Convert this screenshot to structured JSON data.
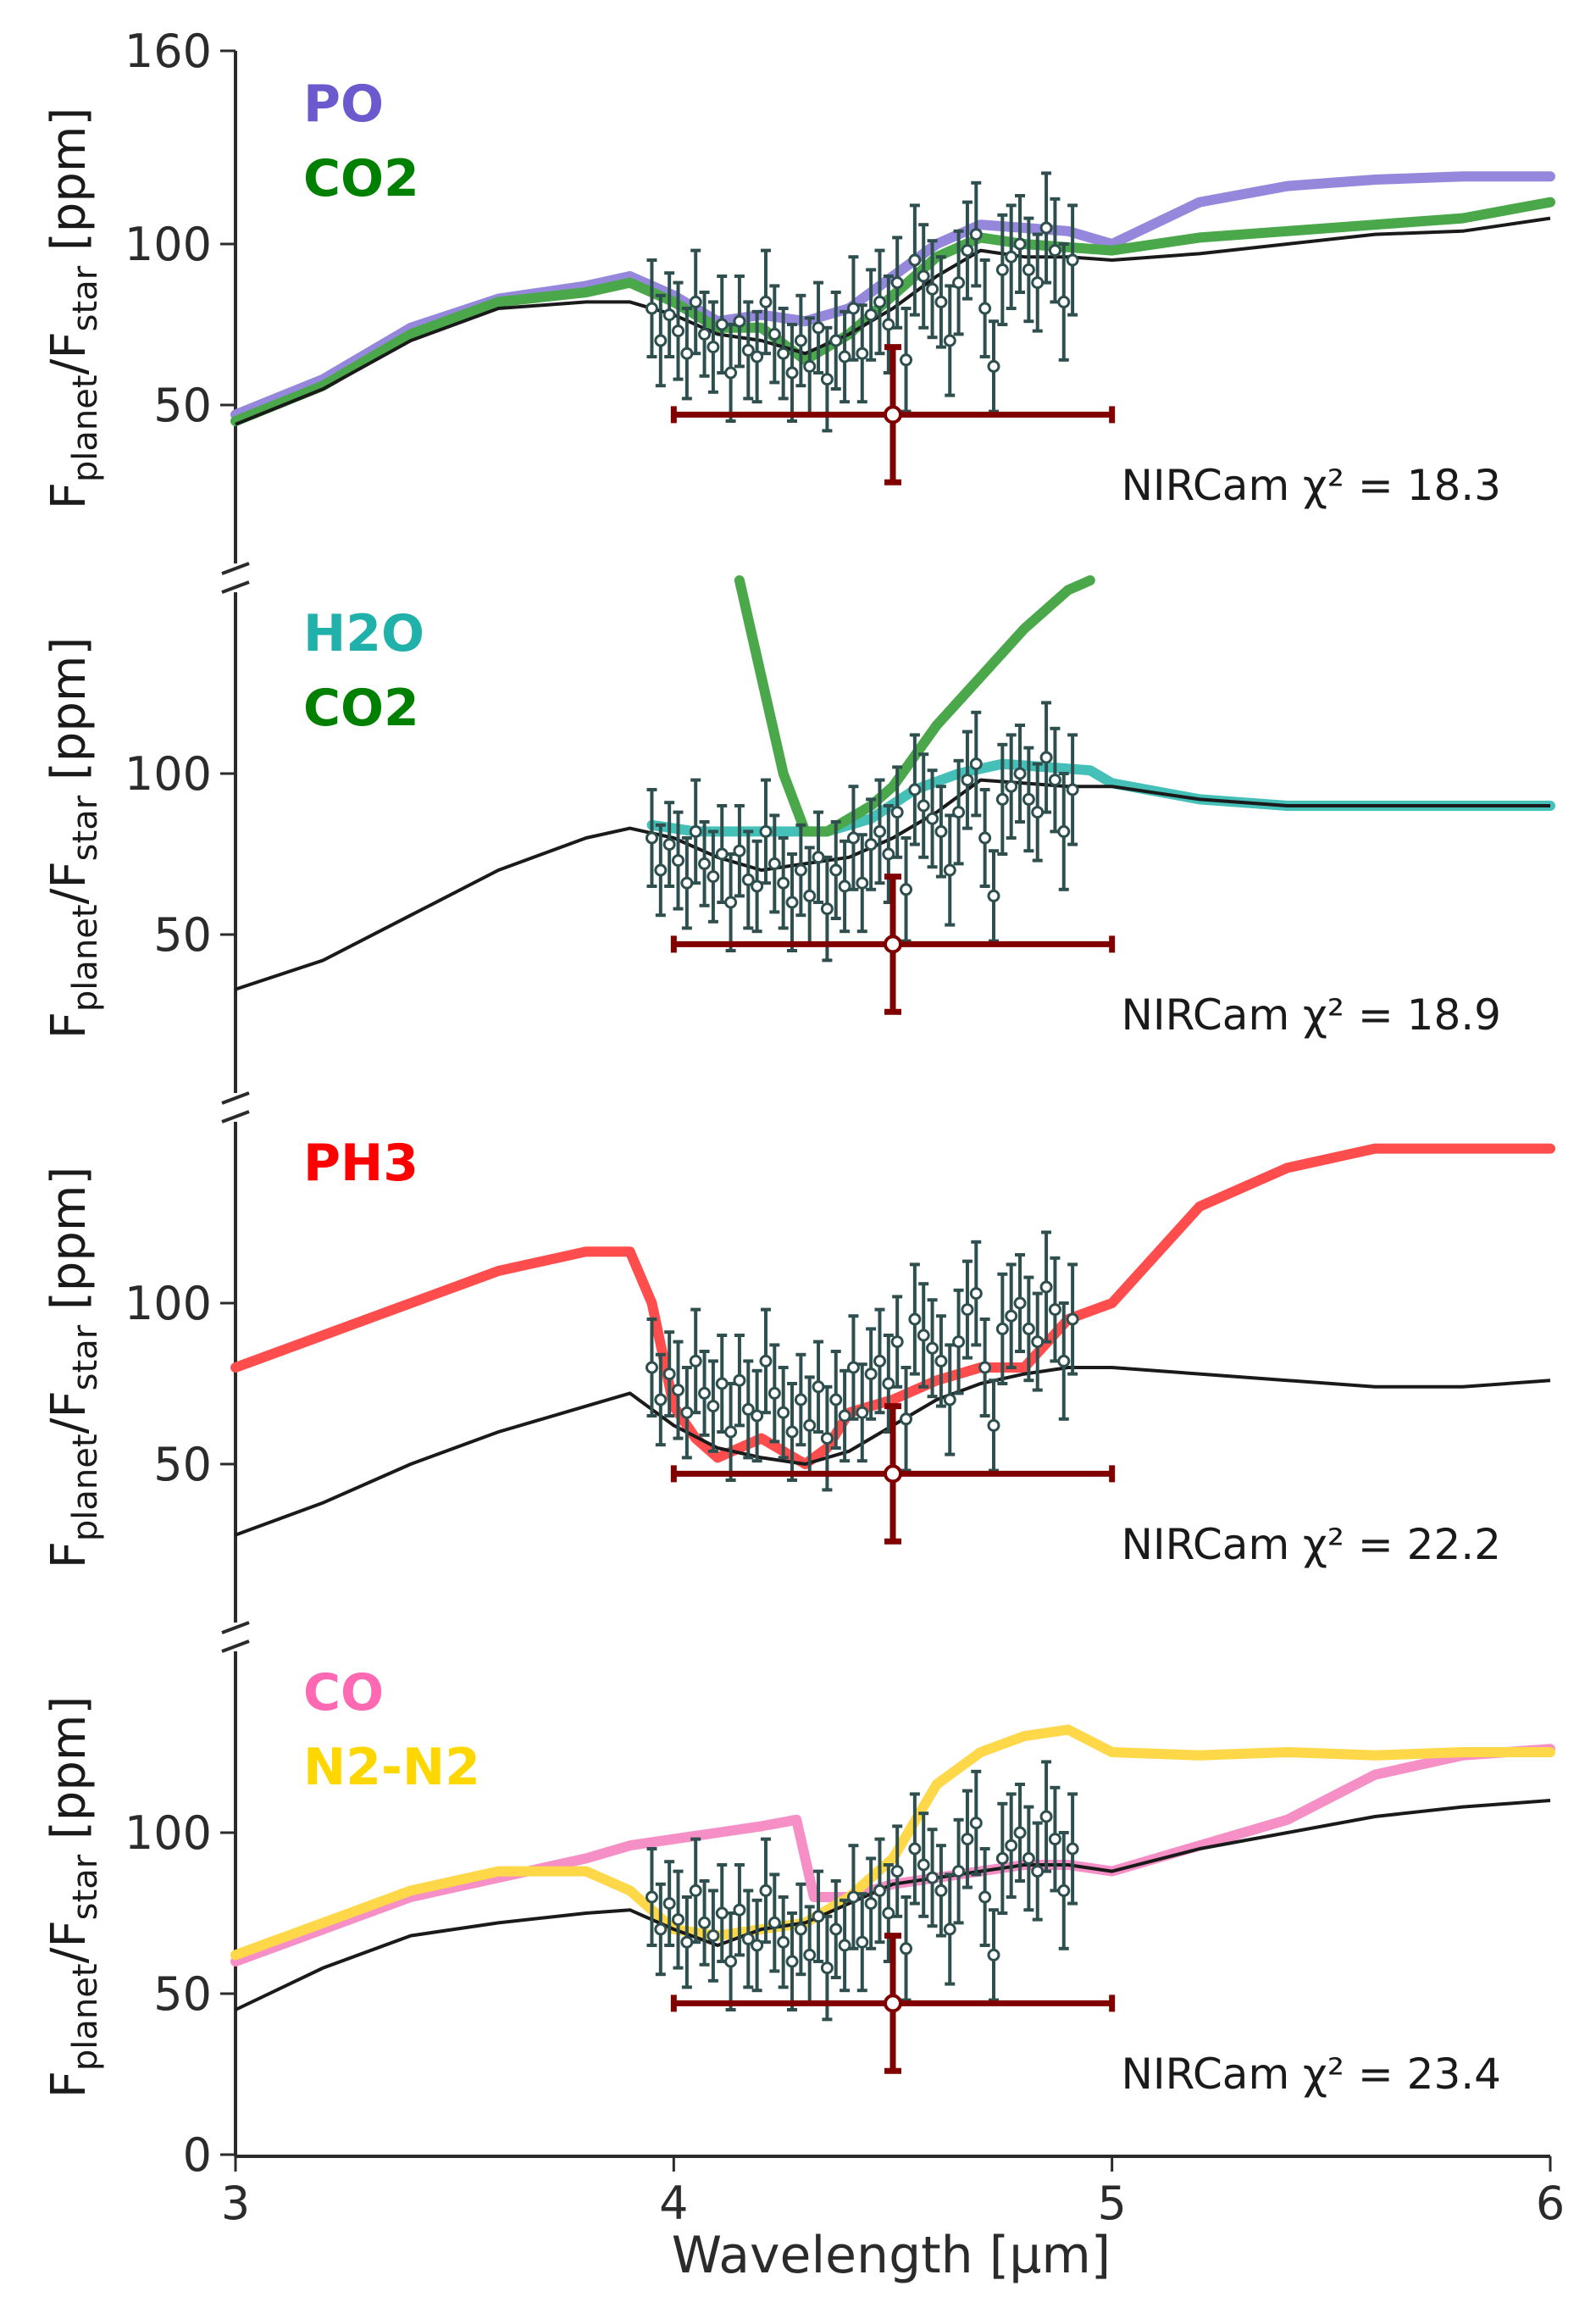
{
  "chart_data": {
    "type": "line",
    "xlabel": "Wavelength [μm]",
    "xlim": [
      3,
      6
    ],
    "x_ticks": [
      "3",
      "4",
      "5",
      "6"
    ],
    "ylabel": {
      "main": "F",
      "sub1": "planet",
      "slash": "/F",
      "sub2": "star",
      "unit": " [ppm]"
    },
    "axis_color": "#2b2b2b",
    "data_color": "#2f4f4f",
    "integrated_color": "#800000",
    "baseline_color": "#1a1a1a",
    "observations": {
      "x": [
        3.95,
        3.97,
        3.99,
        4.01,
        4.03,
        4.05,
        4.07,
        4.09,
        4.11,
        4.13,
        4.15,
        4.17,
        4.19,
        4.21,
        4.23,
        4.25,
        4.27,
        4.29,
        4.31,
        4.33,
        4.35,
        4.37,
        4.39,
        4.41,
        4.43,
        4.45,
        4.47,
        4.49,
        4.51,
        4.53,
        4.55,
        4.57,
        4.59,
        4.61,
        4.63,
        4.65,
        4.67,
        4.69,
        4.71,
        4.73,
        4.75,
        4.77,
        4.79,
        4.81,
        4.83,
        4.85,
        4.87,
        4.89,
        4.91
      ],
      "y": [
        80,
        70,
        78,
        73,
        66,
        82,
        72,
        68,
        75,
        60,
        76,
        67,
        65,
        82,
        72,
        66,
        60,
        70,
        62,
        74,
        58,
        70,
        65,
        80,
        66,
        78,
        82,
        75,
        88,
        64,
        95,
        90,
        86,
        82,
        70,
        88,
        98,
        103,
        80,
        62,
        92,
        96,
        100,
        92,
        88,
        105,
        98,
        82,
        95
      ],
      "err": [
        15,
        14,
        13,
        15,
        14,
        16,
        13,
        14,
        15,
        15,
        14,
        15,
        14,
        16,
        15,
        14,
        15,
        14,
        15,
        14,
        16,
        15,
        14,
        16,
        15,
        14,
        16,
        15,
        14,
        16,
        17,
        16,
        15,
        14,
        17,
        16,
        15,
        16,
        15,
        14,
        17,
        16,
        15,
        16,
        15,
        17,
        16,
        18,
        17
      ]
    },
    "integrated_point": {
      "x": 4.5,
      "y": 47,
      "x_range": [
        4.0,
        5.0
      ],
      "y_err": 21
    },
    "panels": [
      {
        "ylim": [
          0,
          160
        ],
        "y_ticks": [
          "160",
          "100",
          "50"
        ],
        "y_tick_values": [
          160,
          100,
          50
        ],
        "chi2_label": "NIRCam χ² = 18.3",
        "legend": [
          {
            "label": "PO",
            "color": "#6a5acd"
          },
          {
            "label": "CO2",
            "color": "#008000"
          }
        ],
        "baseline": {
          "x": [
            3.0,
            3.2,
            3.4,
            3.6,
            3.8,
            3.9,
            4.0,
            4.1,
            4.2,
            4.3,
            4.4,
            4.5,
            4.6,
            4.7,
            4.8,
            4.9,
            5.0,
            5.2,
            5.4,
            5.6,
            5.8,
            6.0
          ],
          "y": [
            44,
            55,
            70,
            80,
            82,
            82,
            78,
            72,
            70,
            66,
            72,
            80,
            90,
            98,
            96,
            96,
            95,
            97,
            100,
            103,
            104,
            108
          ]
        },
        "series": [
          {
            "name": "PO",
            "color": "#9587dc",
            "x": [
              3.0,
              3.2,
              3.4,
              3.6,
              3.8,
              3.9,
              4.0,
              4.1,
              4.2,
              4.3,
              4.4,
              4.5,
              4.6,
              4.7,
              4.8,
              4.9,
              5.0,
              5.2,
              5.4,
              5.6,
              5.8,
              6.0
            ],
            "y": [
              47,
              58,
              74,
              83,
              87,
              90,
              84,
              76,
              78,
              76,
              80,
              90,
              100,
              106,
              105,
              104,
              100,
              113,
              118,
              120,
              121,
              121
            ]
          },
          {
            "name": "CO2",
            "color": "#4aa84a",
            "x": [
              3.0,
              3.2,
              3.4,
              3.6,
              3.8,
              3.9,
              4.0,
              4.1,
              4.2,
              4.3,
              4.4,
              4.5,
              4.6,
              4.7,
              4.8,
              4.9,
              5.0,
              5.2,
              5.4,
              5.6,
              5.8,
              6.0
            ],
            "y": [
              45,
              56,
              72,
              82,
              85,
              88,
              82,
              74,
              74,
              64,
              72,
              84,
              96,
              102,
              100,
              99,
              98,
              102,
              104,
              106,
              108,
              113
            ]
          }
        ]
      },
      {
        "ylim": [
          0,
          160
        ],
        "y_ticks": [
          "100",
          "50"
        ],
        "y_tick_values": [
          100,
          50
        ],
        "chi2_label": "NIRCam χ² = 18.9",
        "legend": [
          {
            "label": "H2O",
            "color": "#20b2aa"
          },
          {
            "label": "CO2",
            "color": "#008000"
          }
        ],
        "baseline": {
          "x": [
            3.0,
            3.2,
            3.4,
            3.6,
            3.8,
            3.9,
            4.0,
            4.1,
            4.2,
            4.3,
            4.4,
            4.5,
            4.6,
            4.7,
            4.8,
            4.9,
            5.0,
            5.2,
            5.4,
            5.6,
            5.8,
            6.0
          ],
          "y": [
            33,
            42,
            56,
            70,
            80,
            83,
            80,
            74,
            70,
            72,
            74,
            80,
            88,
            98,
            97,
            96,
            96,
            92,
            90,
            90,
            90,
            90
          ]
        },
        "series": [
          {
            "name": "H2O",
            "color": "#45c0b8",
            "x": [
              3.95,
              4.05,
              4.15,
              4.25,
              4.35,
              4.45,
              4.55,
              4.65,
              4.75,
              4.85,
              4.95,
              5.0,
              5.2,
              5.4,
              5.6,
              5.8,
              6.0
            ],
            "y": [
              84,
              82,
              82,
              82,
              82,
              86,
              95,
              100,
              103,
              102,
              101,
              97,
              92,
              90,
              90,
              90,
              90
            ]
          },
          {
            "name": "CO2",
            "color": "#4aa84a",
            "x": [
              4.15,
              4.2,
              4.25,
              4.3,
              4.35,
              4.4,
              4.45,
              4.5,
              4.6,
              4.7,
              4.8,
              4.9,
              4.95
            ],
            "y": [
              160,
              130,
              100,
              82,
              82,
              86,
              90,
              96,
              115,
              130,
              145,
              157,
              160
            ]
          }
        ]
      },
      {
        "ylim": [
          0,
          160
        ],
        "y_ticks": [
          "100",
          "50"
        ],
        "y_tick_values": [
          100,
          50
        ],
        "chi2_label": "NIRCam χ² = 22.2",
        "legend": [
          {
            "label": "PH3",
            "color": "#ff0000"
          }
        ],
        "baseline": {
          "x": [
            3.0,
            3.2,
            3.4,
            3.6,
            3.8,
            3.9,
            4.0,
            4.1,
            4.2,
            4.3,
            4.4,
            4.5,
            4.6,
            4.7,
            4.8,
            4.9,
            5.0,
            5.2,
            5.4,
            5.6,
            5.8,
            6.0
          ],
          "y": [
            28,
            38,
            50,
            60,
            68,
            72,
            62,
            55,
            52,
            50,
            54,
            62,
            70,
            75,
            78,
            80,
            80,
            78,
            76,
            74,
            74,
            76
          ]
        },
        "series": [
          {
            "name": "PH3",
            "color": "#ff4d4d",
            "x": [
              3.0,
              3.2,
              3.4,
              3.6,
              3.8,
              3.9,
              3.95,
              4.0,
              4.05,
              4.1,
              4.2,
              4.3,
              4.35,
              4.4,
              4.5,
              4.6,
              4.7,
              4.8,
              4.9,
              5.0,
              5.1,
              5.2,
              5.4,
              5.6,
              5.8,
              6.0
            ],
            "y": [
              80,
              90,
              100,
              110,
              116,
              116,
              100,
              68,
              58,
              52,
              58,
              50,
              55,
              66,
              70,
              76,
              80,
              80,
              95,
              100,
              115,
              130,
              142,
              148,
              148,
              148
            ]
          }
        ]
      },
      {
        "ylim": [
          0,
          160
        ],
        "y_ticks": [
          "100",
          "50",
          "0"
        ],
        "y_tick_values": [
          100,
          50,
          0
        ],
        "chi2_label": "NIRCam χ² = 23.4",
        "legend": [
          {
            "label": "CO",
            "color": "#ff69b4"
          },
          {
            "label": "N2-N2",
            "color": "#ffd700"
          }
        ],
        "baseline": {
          "x": [
            3.0,
            3.2,
            3.4,
            3.6,
            3.8,
            3.9,
            4.0,
            4.1,
            4.2,
            4.3,
            4.4,
            4.5,
            4.6,
            4.7,
            4.8,
            4.9,
            5.0,
            5.2,
            5.4,
            5.6,
            5.8,
            6.0
          ],
          "y": [
            45,
            58,
            68,
            72,
            75,
            76,
            70,
            65,
            70,
            72,
            78,
            84,
            86,
            88,
            90,
            90,
            88,
            95,
            100,
            105,
            108,
            110
          ]
        },
        "series": [
          {
            "name": "CO",
            "color": "#f78fc7",
            "x": [
              3.0,
              3.2,
              3.4,
              3.6,
              3.8,
              3.9,
              4.0,
              4.1,
              4.2,
              4.28,
              4.32,
              4.4,
              4.5,
              4.6,
              4.7,
              4.8,
              4.9,
              5.0,
              5.2,
              5.4,
              5.6,
              5.8,
              6.0
            ],
            "y": [
              60,
              70,
              80,
              86,
              92,
              96,
              98,
              100,
              102,
              104,
              80,
              80,
              84,
              86,
              88,
              90,
              90,
              88,
              96,
              104,
              118,
              124,
              126
            ]
          },
          {
            "name": "N2-N2",
            "color": "#ffd84a",
            "x": [
              3.0,
              3.2,
              3.4,
              3.6,
              3.8,
              3.9,
              4.0,
              4.1,
              4.2,
              4.3,
              4.4,
              4.5,
              4.6,
              4.7,
              4.8,
              4.9,
              5.0,
              5.2,
              5.4,
              5.6,
              5.8,
              6.0
            ],
            "y": [
              62,
              72,
              82,
              88,
              88,
              82,
              70,
              68,
              70,
              72,
              80,
              92,
              115,
              125,
              130,
              132,
              125,
              124,
              125,
              124,
              125,
              125
            ]
          }
        ]
      }
    ]
  }
}
